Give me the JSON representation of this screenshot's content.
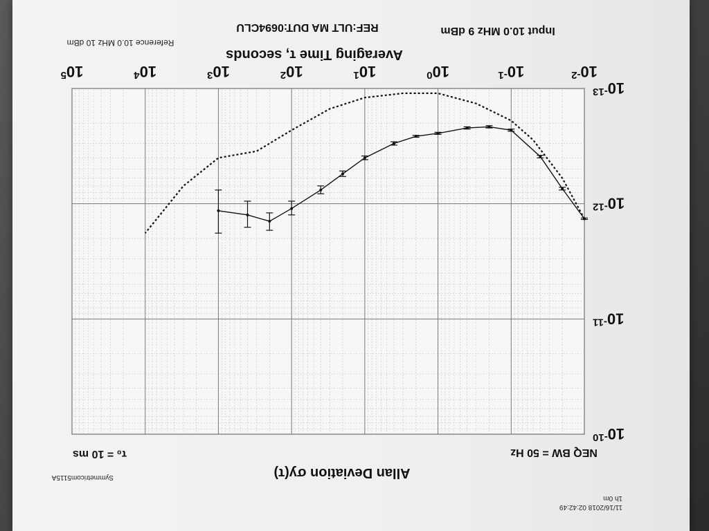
{
  "header": {
    "datetime": "11/16/2018 02:42:49",
    "duration": "1h 0m",
    "instrument": "Symmetricom5115A"
  },
  "info": {
    "tau0": "τ₀ = 10 ms",
    "neq_bw": "NEQ BW = 50 Hz",
    "input": "Input 10.0 MHz 9 dBm",
    "ref_dut": "REF:ULT MA   DUT:0694CLU",
    "reference": "Reference 10.0 MHz 10 dBm"
  },
  "chart_data": {
    "type": "line",
    "title": "Allan Deviation σy(τ)",
    "xlabel": "Averaging Time τ, seconds",
    "ylabel": "",
    "x_scale": "log",
    "y_scale": "log",
    "xlim": [
      0.01,
      100000
    ],
    "ylim": [
      1e-13,
      1e-10
    ],
    "x_ticks": [
      "10-2",
      "10-1",
      "100",
      "101",
      "102",
      "103",
      "104",
      "105"
    ],
    "y_ticks": [
      "10-10",
      "10-11",
      "10-12",
      "10-13"
    ],
    "grid": true,
    "series": [
      {
        "style": "solid",
        "markers": "error bars",
        "points": [
          {
            "x": 0.01,
            "y": 1.35e-12
          },
          {
            "x": 0.02,
            "y": 7.4e-13
          },
          {
            "x": 0.04,
            "y": 3.9e-13
          },
          {
            "x": 0.1,
            "y": 2.3e-13
          },
          {
            "x": 0.2,
            "y": 2.15e-13
          },
          {
            "x": 0.4,
            "y": 2.2e-13
          },
          {
            "x": 1,
            "y": 2.45e-13
          },
          {
            "x": 2,
            "y": 2.6e-13
          },
          {
            "x": 4,
            "y": 3e-13
          },
          {
            "x": 10,
            "y": 4e-13
          },
          {
            "x": 20,
            "y": 5.5e-13
          },
          {
            "x": 40,
            "y": 7.6e-13
          },
          {
            "x": 100,
            "y": 1.1e-12
          },
          {
            "x": 200,
            "y": 1.42e-12
          },
          {
            "x": 400,
            "y": 1.25e-12
          },
          {
            "x": 1000,
            "y": 1.15e-12
          }
        ],
        "errors": [
          {
            "x": 0.01,
            "lo": 1.33e-12,
            "hi": 1.37e-12
          },
          {
            "x": 0.02,
            "lo": 7.2e-13,
            "hi": 7.6e-13
          },
          {
            "x": 0.04,
            "lo": 3.8e-13,
            "hi": 4e-13
          },
          {
            "x": 0.1,
            "lo": 2.25e-13,
            "hi": 2.35e-13
          },
          {
            "x": 0.2,
            "lo": 2.1e-13,
            "hi": 2.2e-13
          },
          {
            "x": 0.4,
            "lo": 2.15e-13,
            "hi": 2.25e-13
          },
          {
            "x": 1,
            "lo": 2.4e-13,
            "hi": 2.5e-13
          },
          {
            "x": 2,
            "lo": 2.55e-13,
            "hi": 2.65e-13
          },
          {
            "x": 4,
            "lo": 2.9e-13,
            "hi": 3.1e-13
          },
          {
            "x": 10,
            "lo": 3.85e-13,
            "hi": 4.15e-13
          },
          {
            "x": 20,
            "lo": 5.2e-13,
            "hi": 5.8e-13
          },
          {
            "x": 40,
            "lo": 7e-13,
            "hi": 8.2e-13
          },
          {
            "x": 100,
            "lo": 9.5e-13,
            "hi": 1.25e-12
          },
          {
            "x": 200,
            "lo": 1.2e-12,
            "hi": 1.7e-12
          },
          {
            "x": 400,
            "lo": 9.5e-13,
            "hi": 1.6e-12
          },
          {
            "x": 1000,
            "lo": 7.6e-13,
            "hi": 1.8e-12
          }
        ]
      },
      {
        "style": "dotted",
        "points": [
          {
            "x": 0.01,
            "y": 1.35e-12
          },
          {
            "x": 0.02,
            "y": 6e-13
          },
          {
            "x": 0.05,
            "y": 2.8e-13
          },
          {
            "x": 0.1,
            "y": 1.9e-13
          },
          {
            "x": 0.3,
            "y": 1.35e-13
          },
          {
            "x": 1,
            "y": 1.1e-13
          },
          {
            "x": 3,
            "y": 1.1e-13
          },
          {
            "x": 10,
            "y": 1.2e-13
          },
          {
            "x": 30,
            "y": 1.5e-13
          },
          {
            "x": 100,
            "y": 2.3e-13
          },
          {
            "x": 300,
            "y": 3.5e-13
          },
          {
            "x": 1000,
            "y": 4e-13
          },
          {
            "x": 3000,
            "y": 7e-13
          },
          {
            "x": 10000,
            "y": 1.8e-12
          }
        ]
      }
    ]
  }
}
